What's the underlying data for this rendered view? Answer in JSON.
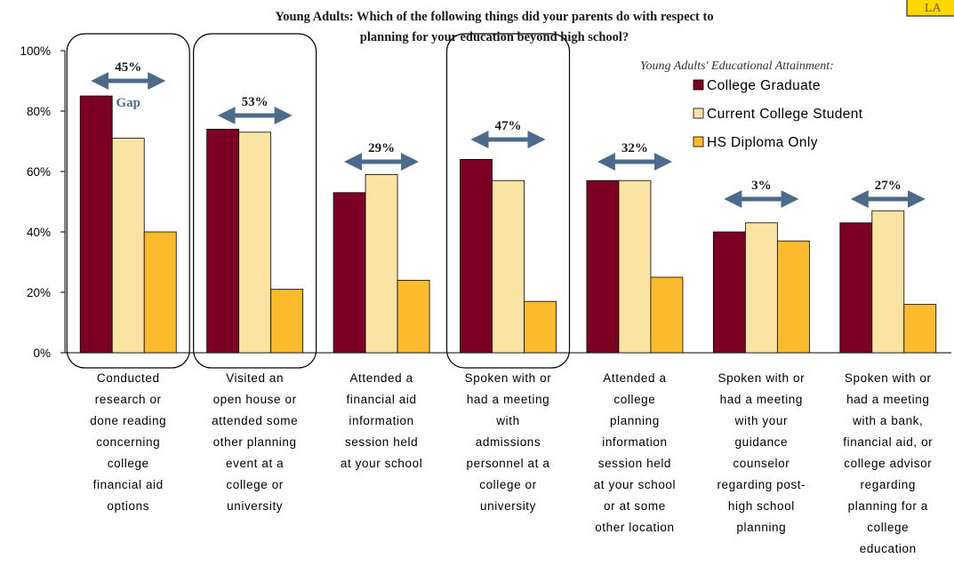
{
  "colors": {
    "college_graduate": "#7b0024",
    "current_college_student": "#fae3a3",
    "hs_diploma_only": "#fbbb2d",
    "gap_arrow": "#4d6a8a",
    "corner_box": "#ffd700"
  },
  "corner_tag": {
    "text": "LA"
  },
  "chart_data": {
    "type": "bar",
    "title": "Young Adults:  Which of the following things did your parents do with respect to planning for your education beyond high school?",
    "title_lines": [
      "Young Adults:  Which of the following things did your parents do with respect to",
      "planning for your education beyond high school?"
    ],
    "ylim": [
      0,
      100
    ],
    "yticks": [
      "0%",
      "20%",
      "40%",
      "60%",
      "80%",
      "100%"
    ],
    "grid": false,
    "legend_position": "top-right",
    "legend_title": "Young Adults' Educational Attainment:",
    "categories": [
      [
        "Conducted",
        "research or",
        "done reading",
        "concerning",
        "college",
        "financial aid",
        "options"
      ],
      [
        "Visited an",
        "open house or",
        "attended some",
        "other planning",
        "event at a",
        "college or",
        "university"
      ],
      [
        "Attended a",
        "financial aid",
        "information",
        "session held",
        "at your school"
      ],
      [
        "Spoken with or",
        "had a meeting",
        "with",
        "admissions",
        "personnel at a",
        "college or",
        "university"
      ],
      [
        "Attended a",
        "college",
        "planning",
        "information",
        "session held",
        "at your school",
        "or at some",
        "other location"
      ],
      [
        "Spoken with or",
        "had a meeting",
        "with your",
        "guidance",
        "counselor",
        "regarding post-",
        "high school",
        "planning"
      ],
      [
        "Spoken with or",
        "had a meeting",
        "with a bank,",
        "financial aid, or",
        "college advisor",
        "regarding",
        "planning for a",
        "college",
        "education"
      ]
    ],
    "series": [
      {
        "name": "College Graduate",
        "values": [
          85,
          74,
          53,
          64,
          57,
          40,
          43
        ]
      },
      {
        "name": "Current College Student",
        "values": [
          71,
          73,
          59,
          57,
          57,
          43,
          47
        ]
      },
      {
        "name": "HS Diploma Only",
        "values": [
          40,
          21,
          24,
          17,
          25,
          37,
          16
        ]
      }
    ],
    "gaps": [
      "45%",
      "53%",
      "29%",
      "47%",
      "32%",
      "3%",
      "27%"
    ],
    "gap_word": "Gap",
    "highlighted_categories": [
      0,
      1,
      3
    ]
  }
}
